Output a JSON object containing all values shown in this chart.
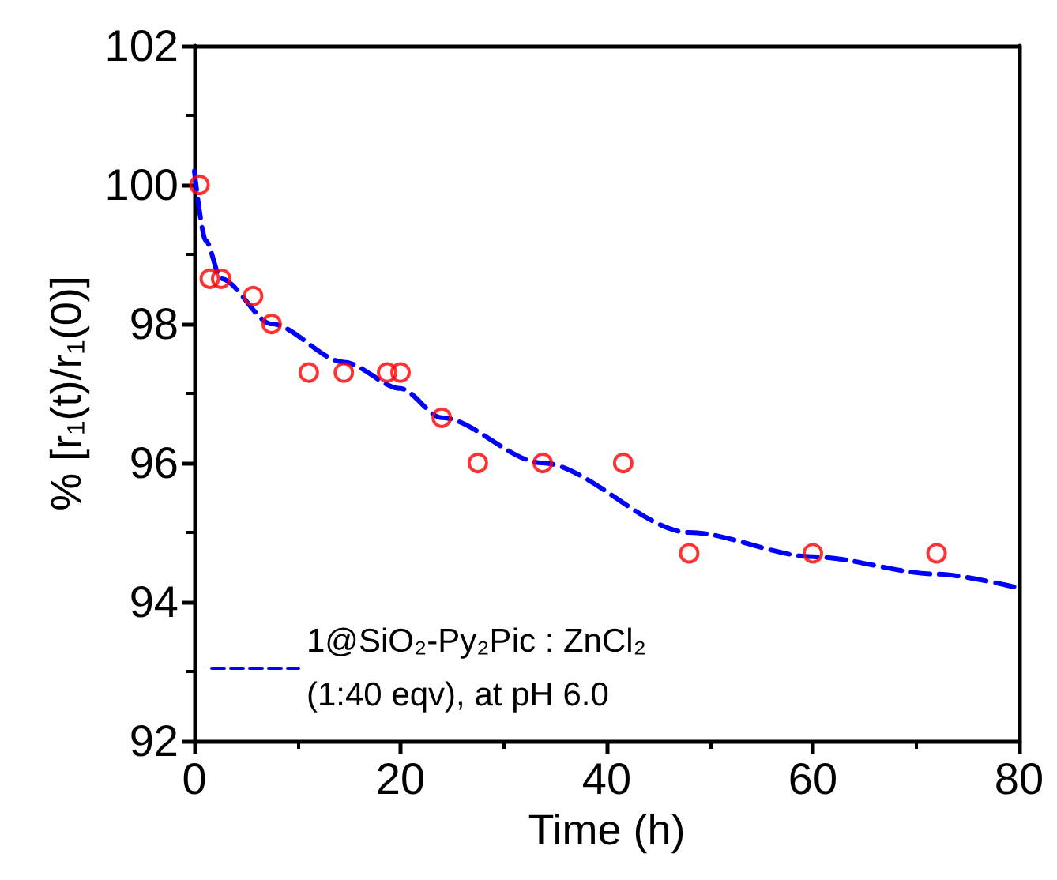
{
  "chart_data": {
    "type": "scatter",
    "xlabel": "Time (h)",
    "ylabel": "% [r₁(t)/r₁(0)]",
    "xlim": [
      0,
      80
    ],
    "xticks": [
      0,
      20,
      40,
      60,
      80
    ],
    "ylim": [
      92,
      102
    ],
    "yticks": [
      92,
      94,
      96,
      98,
      100,
      102
    ],
    "grid": false,
    "legend": "bottom left",
    "series": [
      {
        "type": "scatter",
        "marker": "circle",
        "color": "#ff0000",
        "x": [
          0.5,
          1.5,
          2.6,
          5.7,
          7.5,
          11.1,
          14.5,
          18.7,
          20,
          24,
          27.5,
          33.8,
          41.6,
          48,
          60,
          72
        ],
        "values": [
          100,
          98.65,
          98.65,
          98.4,
          98.0,
          97.3,
          97.3,
          97.3,
          97.3,
          96.65,
          96.0,
          96.0,
          96.0,
          94.7,
          94.7,
          94.7
        ]
      },
      {
        "type": "line",
        "name": "1@SiO₂-Py₂Pic : ZnCl₂\n(1:40 eqv), at pH 6.0",
        "marker": "none",
        "line_style": "dashed",
        "color": "#0000ff",
        "x": [
          0,
          1.1,
          2.6,
          7.5,
          14.5,
          20,
          24,
          33.7,
          48,
          60,
          72,
          80
        ],
        "values": [
          100.2,
          99.2,
          98.65,
          98.0,
          97.45,
          97.07,
          96.65,
          96.0,
          95.0,
          94.65,
          94.4,
          94.2
        ]
      }
    ]
  }
}
